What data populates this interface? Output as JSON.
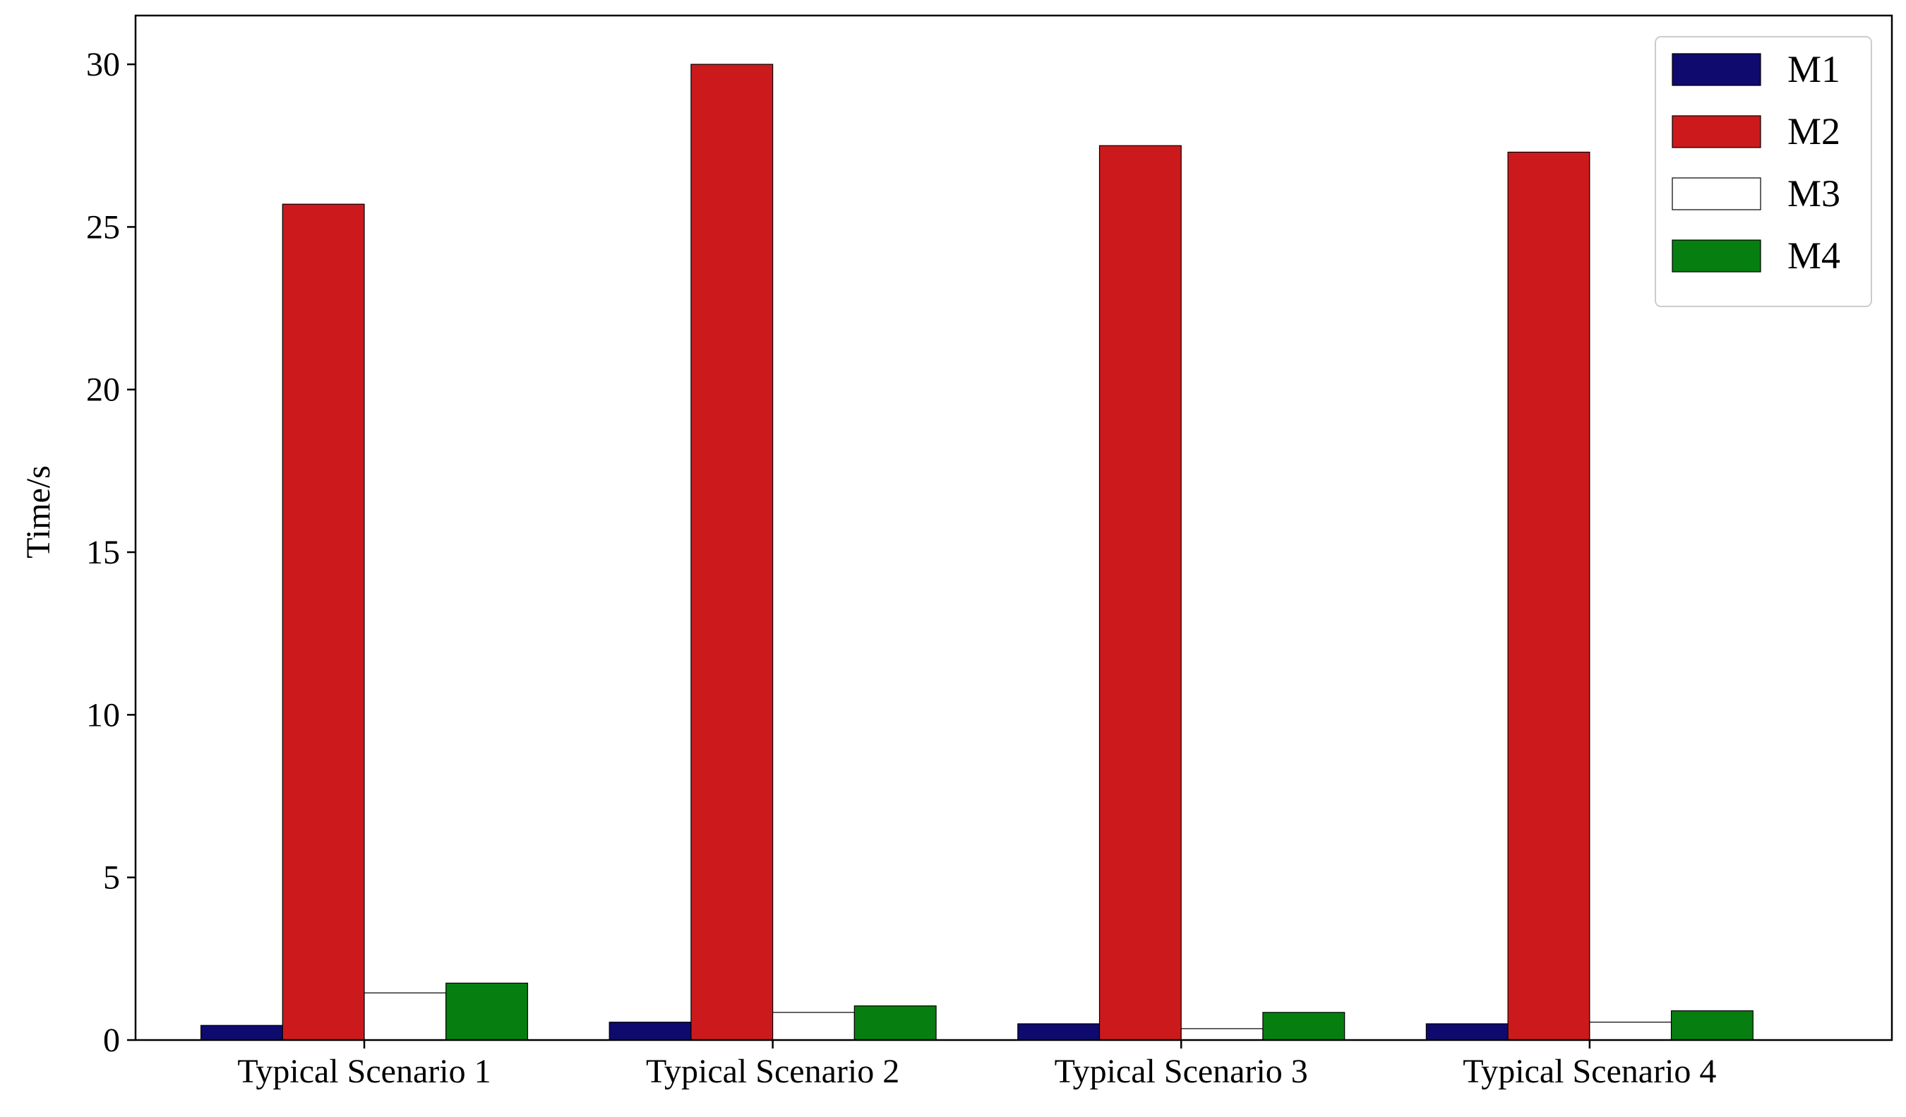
{
  "chart_data": {
    "type": "bar",
    "title": "",
    "xlabel": "",
    "ylabel": "Time/s",
    "ylim": [
      0,
      31.5
    ],
    "yticks": [
      0,
      5,
      10,
      15,
      20,
      25,
      30
    ],
    "grid": false,
    "legend_position": "top-right",
    "categories": [
      "Typical Scenario 1",
      "Typical Scenario 2",
      "Typical Scenario 3",
      "Typical Scenario 4"
    ],
    "series": [
      {
        "name": "M1",
        "color": "#0f0a6e",
        "values": [
          0.45,
          0.55,
          0.5,
          0.5
        ]
      },
      {
        "name": "M2",
        "color": "#cc1a1c",
        "values": [
          25.7,
          30.0,
          27.5,
          27.3
        ]
      },
      {
        "name": "M3",
        "color": "#ffffff",
        "values": [
          1.45,
          0.85,
          0.35,
          0.55
        ]
      },
      {
        "name": "M4",
        "color": "#067f10",
        "values": [
          1.75,
          1.05,
          0.85,
          0.9
        ]
      }
    ]
  }
}
